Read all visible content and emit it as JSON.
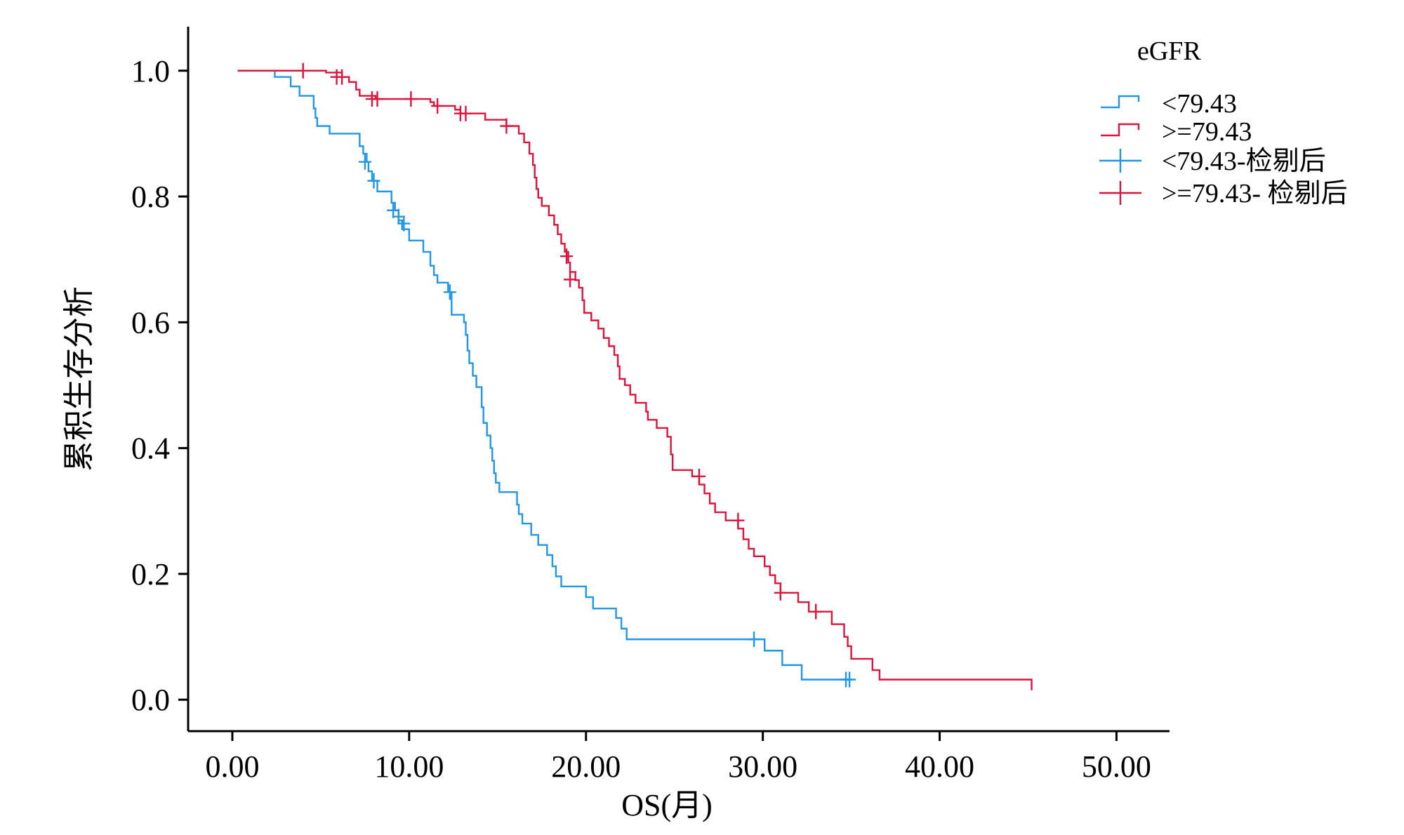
{
  "chart_data": {
    "type": "line",
    "xlabel": "OS(月)",
    "ylabel": "累积生存分析",
    "xlim": [
      -2.5,
      53
    ],
    "ylim": [
      -0.05,
      1.07
    ],
    "xticks": [
      0,
      10,
      20,
      30,
      40,
      50
    ],
    "xtick_labels": [
      "0.00",
      "10.00",
      "20.00",
      "30.00",
      "40.00",
      "50.00"
    ],
    "yticks": [
      0,
      0.2,
      0.4,
      0.6,
      0.8,
      1.0
    ],
    "ytick_labels": [
      "0.0",
      "0.2",
      "0.4",
      "0.6",
      "0.8",
      "1.0"
    ],
    "grid": false,
    "legend": {
      "title": "eGFR",
      "position": "top-right",
      "entries": [
        {
          "label": "<79.43",
          "kind": "step",
          "color": "#2196e3"
        },
        {
          "label": ">=79.43",
          "kind": "step",
          "color": "#dc143c"
        },
        {
          "label": "<79.43-检剔后",
          "kind": "cross",
          "color": "#2196e3"
        },
        {
          "label": ">=79.43- 检剔后",
          "kind": "cross",
          "color": "#dc143c"
        }
      ]
    },
    "series": [
      {
        "color": "#2196e3",
        "steps": [
          [
            0.3,
            1.0
          ],
          [
            2.4,
            0.99
          ],
          [
            3.3,
            0.975
          ],
          [
            3.8,
            0.96
          ],
          [
            4.6,
            0.94
          ],
          [
            4.7,
            0.925
          ],
          [
            4.8,
            0.912
          ],
          [
            5.5,
            0.9
          ],
          [
            7.2,
            0.88
          ],
          [
            7.4,
            0.868
          ],
          [
            7.6,
            0.855
          ],
          [
            7.7,
            0.84
          ],
          [
            7.9,
            0.825
          ],
          [
            8.2,
            0.808
          ],
          [
            9.0,
            0.79
          ],
          [
            9.2,
            0.778
          ],
          [
            9.4,
            0.762
          ],
          [
            9.6,
            0.748
          ],
          [
            10.0,
            0.73
          ],
          [
            10.8,
            0.712
          ],
          [
            11.2,
            0.69
          ],
          [
            11.4,
            0.675
          ],
          [
            11.6,
            0.663
          ],
          [
            12.2,
            0.648
          ],
          [
            12.4,
            0.612
          ],
          [
            13.1,
            0.6
          ],
          [
            13.2,
            0.58
          ],
          [
            13.3,
            0.555
          ],
          [
            13.4,
            0.535
          ],
          [
            13.6,
            0.515
          ],
          [
            13.8,
            0.497
          ],
          [
            14.1,
            0.465
          ],
          [
            14.2,
            0.44
          ],
          [
            14.4,
            0.42
          ],
          [
            14.6,
            0.4
          ],
          [
            14.7,
            0.38
          ],
          [
            14.8,
            0.36
          ],
          [
            14.9,
            0.345
          ],
          [
            15.1,
            0.33
          ],
          [
            16.1,
            0.31
          ],
          [
            16.2,
            0.295
          ],
          [
            16.4,
            0.28
          ],
          [
            16.9,
            0.262
          ],
          [
            17.3,
            0.246
          ],
          [
            17.8,
            0.23
          ],
          [
            18.1,
            0.212
          ],
          [
            18.3,
            0.196
          ],
          [
            18.6,
            0.18
          ],
          [
            20.0,
            0.163
          ],
          [
            20.4,
            0.145
          ],
          [
            21.7,
            0.13
          ],
          [
            22.0,
            0.113
          ],
          [
            22.3,
            0.096
          ],
          [
            30.1,
            0.078
          ],
          [
            31.1,
            0.055
          ],
          [
            32.2,
            0.032
          ],
          [
            35.0,
            0.032
          ]
        ],
        "censor": [
          [
            7.5,
            0.855
          ],
          [
            8.0,
            0.825
          ],
          [
            9.1,
            0.778
          ],
          [
            9.4,
            0.768
          ],
          [
            9.7,
            0.757
          ],
          [
            12.3,
            0.648
          ],
          [
            29.5,
            0.096
          ],
          [
            34.7,
            0.032
          ],
          [
            34.9,
            0.032
          ]
        ]
      },
      {
        "color": "#dc143c",
        "steps": [
          [
            0.3,
            1.0
          ],
          [
            5.3,
            0.997
          ],
          [
            6.2,
            0.99
          ],
          [
            6.6,
            0.982
          ],
          [
            7.0,
            0.97
          ],
          [
            7.2,
            0.96
          ],
          [
            8.1,
            0.955
          ],
          [
            11.0,
            0.955
          ],
          [
            11.2,
            0.95
          ],
          [
            11.4,
            0.944
          ],
          [
            12.6,
            0.938
          ],
          [
            12.9,
            0.932
          ],
          [
            14.3,
            0.922
          ],
          [
            15.5,
            0.912
          ],
          [
            16.2,
            0.9
          ],
          [
            16.5,
            0.886
          ],
          [
            16.8,
            0.868
          ],
          [
            17.0,
            0.85
          ],
          [
            17.1,
            0.83
          ],
          [
            17.2,
            0.812
          ],
          [
            17.3,
            0.798
          ],
          [
            17.5,
            0.785
          ],
          [
            17.9,
            0.77
          ],
          [
            18.2,
            0.755
          ],
          [
            18.4,
            0.74
          ],
          [
            18.6,
            0.725
          ],
          [
            18.8,
            0.712
          ],
          [
            19.0,
            0.695
          ],
          [
            19.1,
            0.68
          ],
          [
            19.4,
            0.667
          ],
          [
            19.6,
            0.655
          ],
          [
            19.8,
            0.635
          ],
          [
            19.9,
            0.615
          ],
          [
            20.3,
            0.603
          ],
          [
            20.7,
            0.59
          ],
          [
            21.0,
            0.575
          ],
          [
            21.3,
            0.562
          ],
          [
            21.6,
            0.548
          ],
          [
            21.8,
            0.53
          ],
          [
            21.9,
            0.51
          ],
          [
            22.2,
            0.5
          ],
          [
            22.5,
            0.485
          ],
          [
            22.8,
            0.472
          ],
          [
            23.4,
            0.458
          ],
          [
            23.5,
            0.445
          ],
          [
            24.0,
            0.432
          ],
          [
            24.6,
            0.418
          ],
          [
            24.8,
            0.39
          ],
          [
            24.9,
            0.365
          ],
          [
            26.0,
            0.355
          ],
          [
            26.4,
            0.342
          ],
          [
            26.7,
            0.328
          ],
          [
            27.0,
            0.312
          ],
          [
            27.3,
            0.298
          ],
          [
            27.9,
            0.285
          ],
          [
            28.6,
            0.272
          ],
          [
            28.9,
            0.255
          ],
          [
            29.2,
            0.24
          ],
          [
            29.5,
            0.228
          ],
          [
            30.1,
            0.212
          ],
          [
            30.4,
            0.198
          ],
          [
            30.7,
            0.185
          ],
          [
            31.0,
            0.17
          ],
          [
            32.0,
            0.155
          ],
          [
            32.6,
            0.14
          ],
          [
            33.9,
            0.12
          ],
          [
            34.6,
            0.1
          ],
          [
            34.8,
            0.085
          ],
          [
            35.0,
            0.065
          ],
          [
            36.2,
            0.047
          ],
          [
            36.6,
            0.032
          ],
          [
            45.2,
            0.015
          ]
        ],
        "censor": [
          [
            4.0,
            1.0
          ],
          [
            5.9,
            0.99
          ],
          [
            6.2,
            0.99
          ],
          [
            7.9,
            0.955
          ],
          [
            8.2,
            0.955
          ],
          [
            10.1,
            0.955
          ],
          [
            11.6,
            0.944
          ],
          [
            12.9,
            0.932
          ],
          [
            13.2,
            0.932
          ],
          [
            15.5,
            0.912
          ],
          [
            18.9,
            0.705
          ],
          [
            19.1,
            0.668
          ],
          [
            26.4,
            0.355
          ],
          [
            28.6,
            0.285
          ],
          [
            31.0,
            0.17
          ],
          [
            33.0,
            0.14
          ]
        ]
      }
    ]
  }
}
